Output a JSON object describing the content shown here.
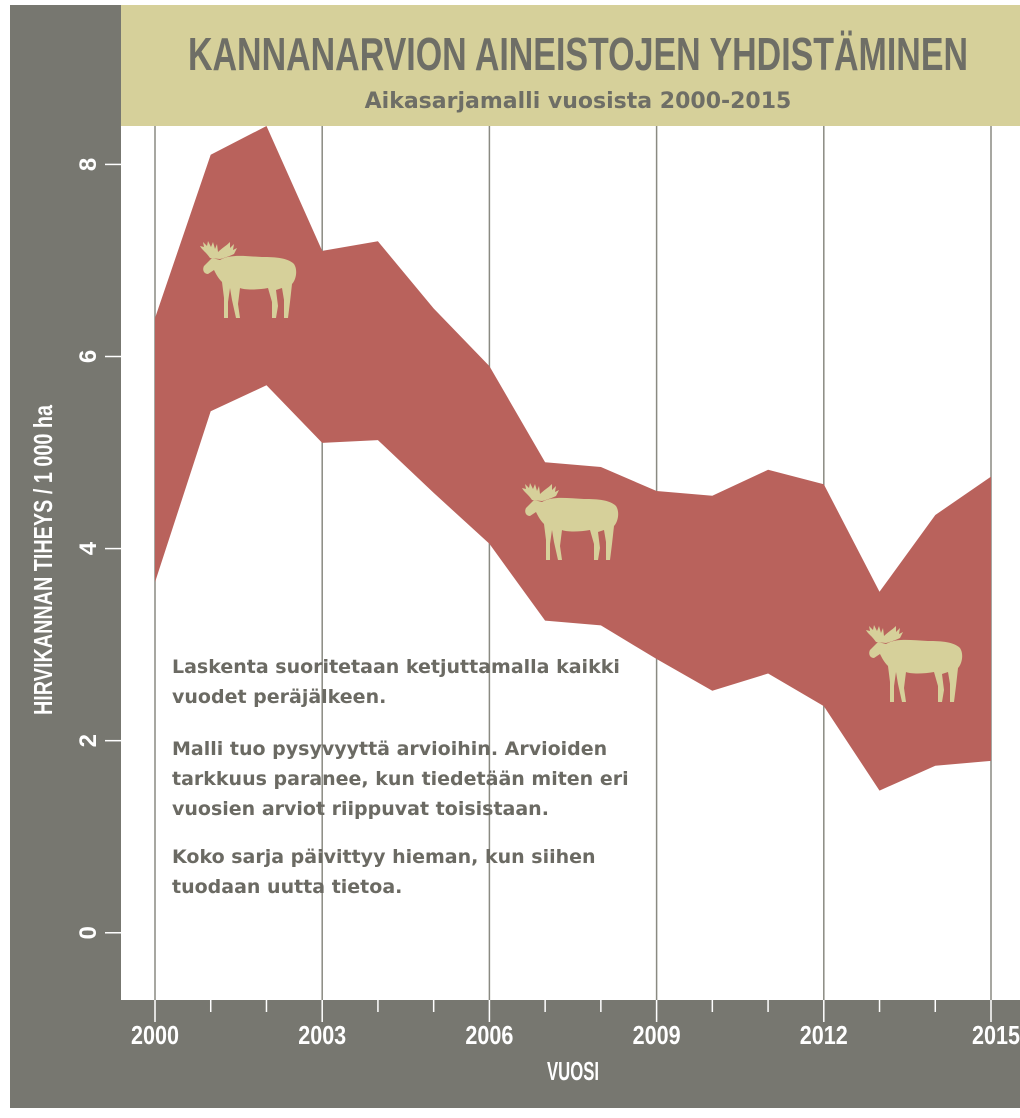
{
  "header": {
    "title": "KANNANARVION AINEISTOJEN YHDISTÄMINEN",
    "subtitle": "Aikasarjamalli vuosista 2000-2015"
  },
  "colors": {
    "frame": "#777770",
    "header_bg": "#d6d09a",
    "band": "#b9625c",
    "moose": "#d6d09a",
    "gridline": "#8a8a82",
    "axis_text": "#ffffff",
    "note_text": "#6b6a63"
  },
  "notes": {
    "p1": "Laskenta suoritetaan ketjuttamalla kaikki vuodet peräjälkeen.",
    "p2": "Malli tuo pysyvyyttä arvioihin. Arvioiden tarkkuus paranee, kun tiedetään miten eri vuosien arviot riippuvat toisistaan.",
    "p3": "Koko sarja päivittyy hieman, kun siihen tuodaan uutta tietoa."
  },
  "icons": [
    "moose-icon",
    "moose-icon",
    "moose-icon"
  ],
  "chart_data": {
    "type": "area",
    "title": "KANNANARVION AINEISTOJEN YHDISTÄMINEN",
    "subtitle": "Aikasarjamalli vuosista 2000-2015",
    "xlabel": "VUOSI",
    "ylabel": "HIRVIKANNAN TIHEYS / 1 000 ha",
    "x": [
      2000,
      2001,
      2002,
      2003,
      2004,
      2005,
      2006,
      2007,
      2008,
      2009,
      2010,
      2011,
      2012,
      2013,
      2014,
      2015
    ],
    "upper": [
      6.4,
      8.1,
      8.4,
      7.1,
      7.2,
      6.5,
      5.9,
      4.9,
      4.85,
      4.6,
      4.55,
      4.82,
      4.67,
      3.55,
      4.35,
      4.75
    ],
    "lower": [
      3.65,
      5.43,
      5.7,
      5.1,
      5.13,
      4.58,
      4.05,
      3.25,
      3.2,
      2.85,
      2.52,
      2.7,
      2.36,
      1.48,
      1.74,
      1.79
    ],
    "xticks": [
      2000,
      2003,
      2006,
      2009,
      2012,
      2015
    ],
    "yticks": [
      0,
      2,
      4,
      6,
      8
    ],
    "xlim": [
      2000,
      2015
    ],
    "ylim": [
      -0.7,
      8.4
    ],
    "grid": "vertical"
  }
}
